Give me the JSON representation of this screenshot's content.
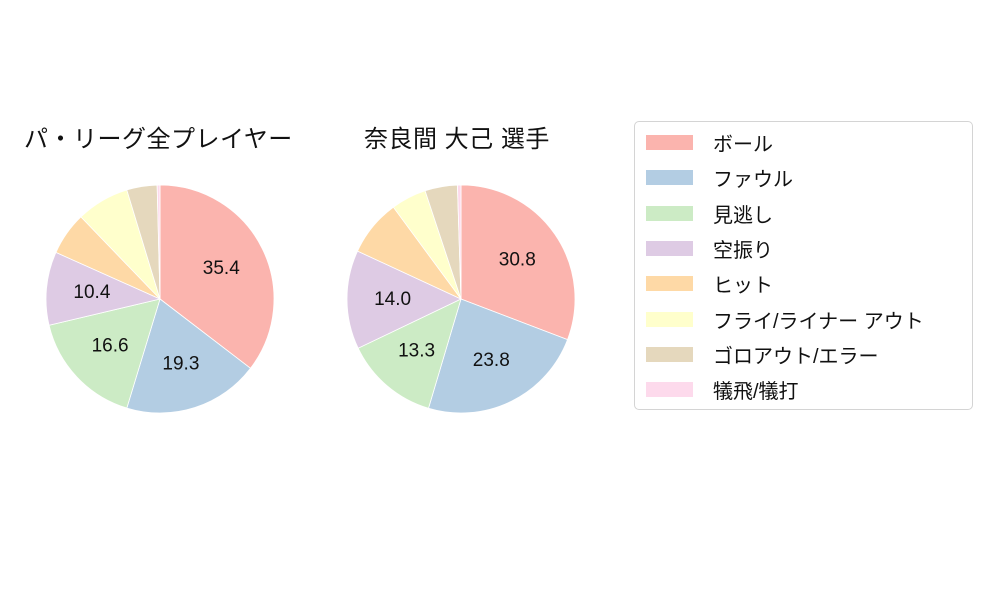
{
  "chart_data": {
    "type": "pie",
    "categories": [
      "ボール",
      "ファウル",
      "見逃し",
      "空振り",
      "ヒット",
      "フライ/ライナー アウト",
      "ゴロアウト/エラー",
      "犠飛/犠打"
    ],
    "colors": [
      "#fbb4ae",
      "#b3cde3",
      "#ccebc5",
      "#decbe4",
      "#fed9a6",
      "#ffffcc",
      "#e5d8bd",
      "#fddaec"
    ],
    "start_angle_deg": 90,
    "direction": "clockwise",
    "legend_position": "right",
    "label_threshold": 10,
    "charts": [
      {
        "title": "パ・リーグ全プレイヤー",
        "values": [
          35.4,
          19.3,
          16.6,
          10.4,
          6.1,
          7.5,
          4.3,
          0.4
        ],
        "shown_labels": [
          "35.4",
          "19.3",
          "16.6",
          "10.4"
        ]
      },
      {
        "title": "奈良間 大己  選手",
        "values": [
          30.8,
          23.8,
          13.3,
          14.0,
          8.0,
          5.0,
          4.6,
          0.5
        ],
        "shown_labels": [
          "30.8",
          "23.8",
          "13.3",
          "14.0"
        ]
      }
    ]
  },
  "legend": {
    "items": [
      {
        "label": "ボール",
        "color": "#fbb4ae"
      },
      {
        "label": "ファウル",
        "color": "#b3cde3"
      },
      {
        "label": "見逃し",
        "color": "#ccebc5"
      },
      {
        "label": "空振り",
        "color": "#decbe4"
      },
      {
        "label": "ヒット",
        "color": "#fed9a6"
      },
      {
        "label": "フライ/ライナー アウト",
        "color": "#ffffcc"
      },
      {
        "label": "ゴロアウト/エラー",
        "color": "#e5d8bd"
      },
      {
        "label": "犠飛/犠打",
        "color": "#fddaec"
      }
    ]
  },
  "style": {
    "text_color": "#111111",
    "legend_border_color": "#d4d4d4",
    "wedge_edge_color": "#ffffff"
  }
}
